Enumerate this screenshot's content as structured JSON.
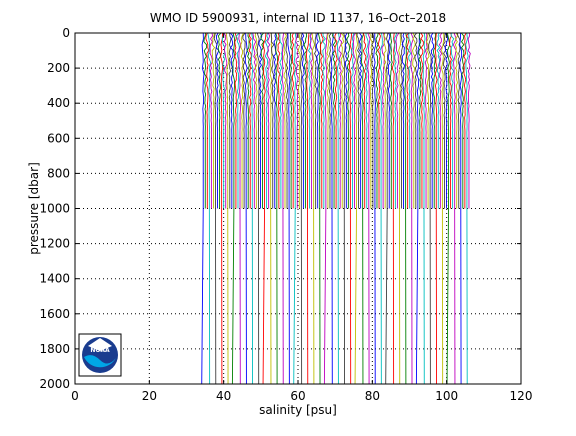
{
  "chart_data": {
    "type": "line",
    "title": "WMO ID 5900931, internal ID 1137, 16–Oct–2018",
    "xlabel": "salinity [psu]",
    "ylabel": "pressure [dbar]",
    "xlim": [
      0,
      120
    ],
    "ylim": [
      2000,
      0
    ],
    "y_reversed": true,
    "grid": true,
    "grid_style": "dotted",
    "x_ticks": [
      "0",
      "20",
      "40",
      "60",
      "80",
      "100",
      "120"
    ],
    "y_ticks": [
      "0",
      "200",
      "400",
      "600",
      "800",
      "1000",
      "1200",
      "1400",
      "1600",
      "1800",
      "2000"
    ],
    "x_tick_values": [
      0,
      20,
      40,
      60,
      80,
      100,
      120
    ],
    "y_tick_values": [
      0,
      200,
      400,
      600,
      800,
      1000,
      1200,
      1400,
      1600,
      1800,
      2000
    ],
    "description_of_data": "Waterfall of successive salinity profiles; each profile offset in salinity. Profiles span roughly 34.5 to 106.5 psu (offset), dense 0-1000 dbar, sparser profiles extending to 2000 dbar.",
    "profile_offset_range": [
      34.5,
      106.5
    ],
    "shallow_profile_max_pressure": 1000,
    "deep_profile_max_pressure": 2000,
    "series_colors": [
      "#0000ff",
      "#008000",
      "#ff0000",
      "#00bfbf",
      "#bf00bf",
      "#bfbf00",
      "#404040"
    ]
  },
  "logo": {
    "name": "NOAA"
  }
}
